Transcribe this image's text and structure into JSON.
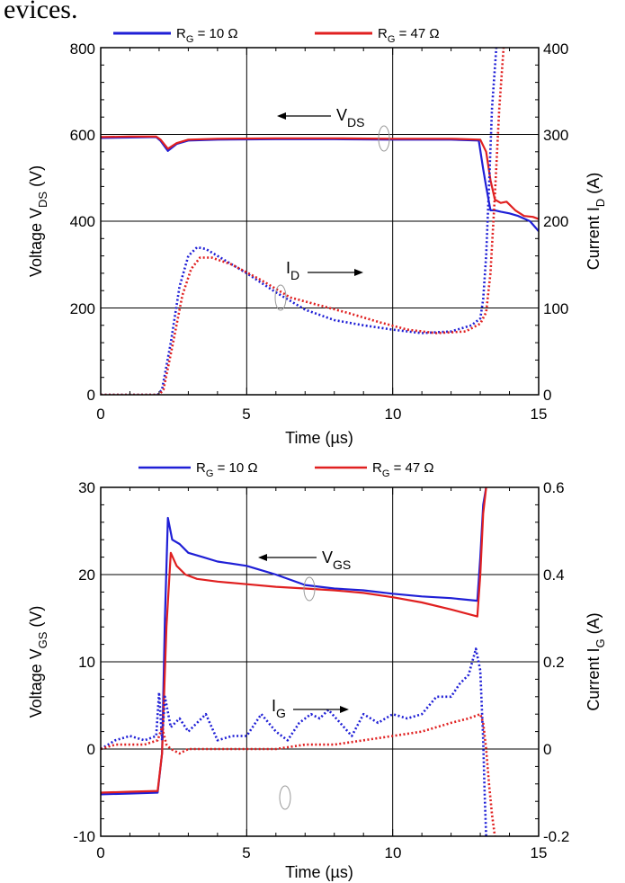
{
  "heading_fragment": "evices.",
  "colors": {
    "rg10": "#1f1fd6",
    "rg47": "#e02020",
    "axis": "#000000"
  },
  "chart_data": [
    {
      "type": "line",
      "panel": "top",
      "xlabel": "Time (µs)",
      "ylabel_left": {
        "main": "Voltage  V",
        "sub": "DS",
        "unit": " (V)"
      },
      "ylabel_right": {
        "main": "Current  I",
        "sub": "D",
        "unit": " (A)"
      },
      "xlim": [
        0,
        15
      ],
      "ylim_left": [
        0,
        800
      ],
      "ylim_right": [
        0,
        400
      ],
      "xticks": [
        "0",
        "5",
        "10",
        "15"
      ],
      "yticks_left": [
        "0",
        "200",
        "400",
        "600",
        "800"
      ],
      "yticks_right": [
        "0",
        "100",
        "200",
        "300",
        "400"
      ],
      "grid": true,
      "legend": [
        {
          "main": "R",
          "sub": "G",
          "rest": " = 10 Ω",
          "color": "#1f1fd6"
        },
        {
          "main": "R",
          "sub": "G",
          "rest": " = 47 Ω",
          "color": "#e02020"
        }
      ],
      "annotations": [
        {
          "main": "V",
          "sub": "DS",
          "arrow": "left"
        },
        {
          "main": "I",
          "sub": "D",
          "arrow": "right"
        }
      ],
      "series": [
        {
          "name": "V_DS, R_G = 10 Ω",
          "axis": "left",
          "style": "solid",
          "color": "#1f1fd6",
          "x": [
            0,
            1,
            1.9,
            2.05,
            2.3,
            2.6,
            3,
            4,
            6,
            8,
            10,
            12,
            12.95,
            13.1,
            13.2,
            13.35,
            13.5,
            13.7,
            14,
            14.3,
            14.7,
            15
          ],
          "y": [
            592,
            593,
            594,
            585,
            562,
            578,
            586,
            588,
            589,
            589,
            588,
            588,
            586,
            520,
            480,
            425,
            425,
            422,
            418,
            412,
            400,
            377
          ]
        },
        {
          "name": "V_DS, R_G = 47 Ω",
          "axis": "left",
          "style": "solid",
          "color": "#e02020",
          "x": [
            0,
            1,
            1.9,
            2.05,
            2.3,
            2.6,
            3,
            4,
            6,
            8,
            10,
            12,
            13,
            13.2,
            13.35,
            13.5,
            13.7,
            13.9,
            14.2,
            14.5,
            14.8,
            15
          ],
          "y": [
            594,
            595,
            595,
            588,
            567,
            580,
            588,
            590,
            591,
            591,
            590,
            590,
            588,
            560,
            495,
            450,
            442,
            445,
            425,
            412,
            410,
            405
          ]
        },
        {
          "name": "I_D, R_G = 10 Ω",
          "axis": "right",
          "style": "dotted",
          "color": "#1f1fd6",
          "x": [
            0,
            1,
            1.95,
            2.1,
            2.4,
            2.7,
            3,
            3.3,
            3.6,
            4,
            5,
            6,
            7,
            8,
            9,
            10,
            11,
            12,
            12.7,
            13,
            13.1,
            13.2,
            13.3,
            13.4,
            13.55
          ],
          "y": [
            0,
            0,
            0,
            6,
            60,
            125,
            160,
            170,
            168,
            160,
            140,
            118,
            98,
            86,
            80,
            75,
            71,
            73,
            80,
            88,
            110,
            160,
            240,
            330,
            400
          ]
        },
        {
          "name": "I_D, R_G = 47 Ω",
          "axis": "right",
          "style": "dotted",
          "color": "#e02020",
          "x": [
            0,
            1,
            2,
            2.15,
            2.45,
            2.8,
            3.1,
            3.4,
            3.8,
            4.5,
            5.5,
            6.5,
            7.5,
            8.5,
            9.5,
            10.5,
            11.5,
            12.5,
            13,
            13.2,
            13.35,
            13.5,
            13.65,
            13.8
          ],
          "y": [
            0,
            0,
            0,
            6,
            55,
            115,
            145,
            158,
            158,
            150,
            132,
            112,
            103,
            94,
            84,
            75,
            71,
            73,
            82,
            95,
            140,
            230,
            330,
            400
          ]
        },
        {
          "name": "V_GS, R_G = 10 Ω",
          "axis": "left",
          "style": "solid",
          "color": "#1f1fd6",
          "x": [
            0,
            1,
            1.95,
            2.1,
            2.2,
            2.3,
            2.45,
            2.7,
            3,
            3.5,
            4,
            5,
            6,
            7,
            8,
            9,
            10,
            11,
            12,
            12.9,
            13,
            13.1,
            13.2
          ],
          "y": [
            -5.2,
            -5.1,
            -5,
            -0.5,
            15,
            26.5,
            24,
            23.5,
            22.5,
            22,
            21.5,
            21,
            20,
            18.8,
            18.4,
            18.2,
            17.8,
            17.5,
            17.3,
            17,
            22,
            28,
            30
          ]
        },
        {
          "name": "V_GS, R_G = 47 Ω",
          "axis": "left",
          "style": "solid",
          "color": "#e02020",
          "x": [
            0,
            1,
            1.95,
            2.1,
            2.25,
            2.4,
            2.6,
            2.9,
            3.3,
            4,
            5,
            6,
            7,
            8,
            9,
            10,
            11,
            12,
            12.9,
            13,
            13.1,
            13.2
          ],
          "y": [
            -5,
            -4.9,
            -4.8,
            -0.5,
            14,
            22.5,
            21,
            20,
            19.5,
            19.2,
            18.9,
            18.6,
            18.4,
            18.2,
            17.9,
            17.4,
            16.8,
            16,
            15.2,
            20,
            27,
            30
          ]
        },
        {
          "name": "I_G, R_G = 10 Ω",
          "axis": "right",
          "style": "dotted",
          "color": "#1f1fd6",
          "x": [
            0,
            0.5,
            1,
            1.5,
            1.9,
            2.0,
            2.1,
            2.2,
            2.4,
            2.7,
            3,
            3.3,
            3.6,
            4,
            4.5,
            5,
            5.5,
            6,
            6.4,
            6.8,
            7.2,
            7.5,
            7.8,
            8.2,
            8.6,
            9,
            9.5,
            10,
            10.5,
            11,
            11.5,
            12,
            12.3,
            12.6,
            12.85,
            13.0,
            13.1,
            13.15,
            13.2
          ],
          "y": [
            0.0,
            0.02,
            0.03,
            0.02,
            0.03,
            0.13,
            0.02,
            0.12,
            0.05,
            0.07,
            0.04,
            0.06,
            0.08,
            0.02,
            0.03,
            0.03,
            0.08,
            0.04,
            0.02,
            0.06,
            0.08,
            0.07,
            0.09,
            0.06,
            0.03,
            0.08,
            0.06,
            0.08,
            0.07,
            0.08,
            0.12,
            0.12,
            0.15,
            0.17,
            0.23,
            0.18,
            0.02,
            -0.1,
            -0.2
          ]
        },
        {
          "name": "I_G, R_G = 47 Ω",
          "axis": "right",
          "style": "dotted",
          "color": "#e02020",
          "x": [
            0,
            0.5,
            1,
            1.5,
            1.95,
            2.1,
            2.25,
            2.4,
            2.7,
            3,
            3.5,
            4,
            5,
            6,
            7,
            8,
            9,
            10,
            11,
            12,
            12.6,
            13,
            13.1,
            13.2,
            13.3,
            13.4,
            13.5
          ],
          "y": [
            0.0,
            0.01,
            0.01,
            0.01,
            0.02,
            0.05,
            0.01,
            0.0,
            -0.01,
            0.0,
            0.0,
            0.0,
            0.0,
            0.0,
            0.01,
            0.01,
            0.02,
            0.03,
            0.04,
            0.06,
            0.07,
            0.08,
            0.06,
            0.0,
            -0.08,
            -0.15,
            -0.2
          ]
        }
      ]
    },
    {
      "type": "line",
      "panel": "bottom",
      "xlabel": "Time (µs)",
      "ylabel_left": {
        "main": "Voltage  V",
        "sub": "GS",
        "unit": " (V)"
      },
      "ylabel_right": {
        "main": "Current  I",
        "sub": "G",
        "unit": " (A)"
      },
      "xlim": [
        0,
        15
      ],
      "ylim_left": [
        -10,
        30
      ],
      "ylim_right": [
        -0.2,
        0.6
      ],
      "xticks": [
        "0",
        "5",
        "10",
        "15"
      ],
      "yticks_left": [
        "-10",
        "0",
        "10",
        "20",
        "30"
      ],
      "yticks_right": [
        "-0.2",
        "0",
        "0.2",
        "0.4",
        "0.6"
      ],
      "grid": true,
      "legend": [
        {
          "main": "R",
          "sub": "G",
          "rest": " = 10 Ω",
          "color": "#1f1fd6"
        },
        {
          "main": "R",
          "sub": "G",
          "rest": " = 47 Ω",
          "color": "#e02020"
        }
      ],
      "annotations": [
        {
          "main": "V",
          "sub": "GS",
          "arrow": "left"
        },
        {
          "main": "I",
          "sub": "G",
          "arrow": "right"
        }
      ]
    }
  ]
}
